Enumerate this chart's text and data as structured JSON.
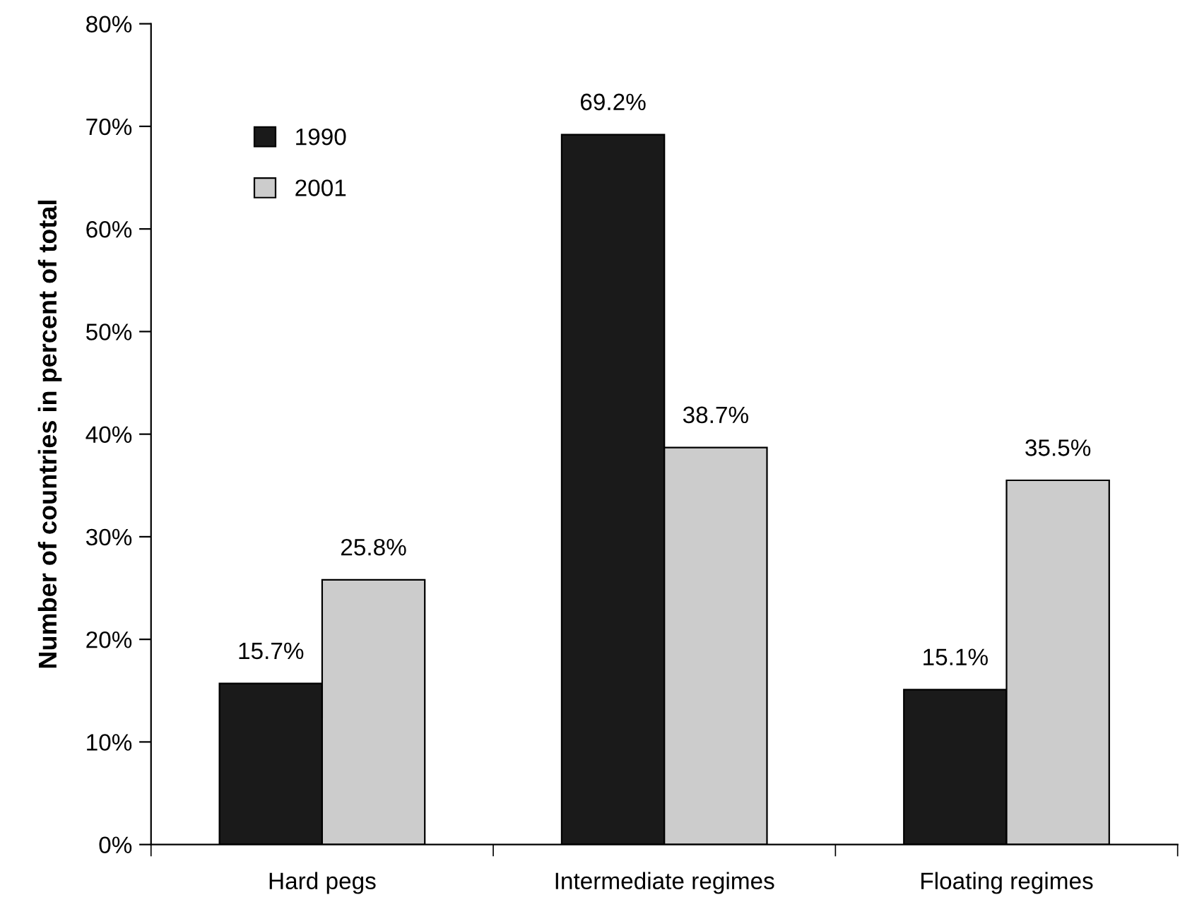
{
  "chart_data": {
    "type": "bar",
    "ylabel": "Number of countries in percent of total",
    "categories": [
      "Hard pegs",
      "Intermediate regimes",
      "Floating regimes"
    ],
    "series": [
      {
        "name": "1990",
        "color": "#1a1a1a",
        "values": [
          15.7,
          69.2,
          15.1
        ],
        "value_labels": [
          "15.7%",
          "69.2%",
          "15.1%"
        ]
      },
      {
        "name": "2001",
        "color": "#cccccc",
        "values": [
          25.8,
          38.7,
          35.5
        ],
        "value_labels": [
          "25.8%",
          "38.7%",
          "35.5%"
        ]
      }
    ],
    "ylim": [
      0,
      80
    ],
    "yticks": [
      {
        "value": 0,
        "label": "0%"
      },
      {
        "value": 10,
        "label": "10%"
      },
      {
        "value": 20,
        "label": "20%"
      },
      {
        "value": 30,
        "label": "30%"
      },
      {
        "value": 40,
        "label": "40%"
      },
      {
        "value": 50,
        "label": "50%"
      },
      {
        "value": 60,
        "label": "60%"
      },
      {
        "value": 70,
        "label": "70%"
      },
      {
        "value": 80,
        "label": "80%"
      }
    ],
    "legend": "top left",
    "grid": false
  }
}
